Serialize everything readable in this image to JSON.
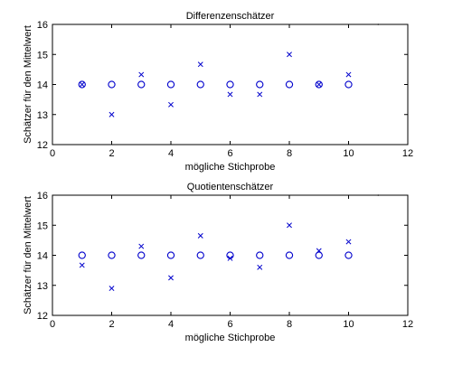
{
  "chart_data": [
    {
      "type": "scatter",
      "title": "Differenzenschätzer",
      "xlabel": "mögliche Stichprobe",
      "ylabel": "Schätzer für den Mittelwert",
      "xlim": [
        0,
        12
      ],
      "ylim": [
        12,
        16
      ],
      "xticks": [
        0,
        2,
        4,
        6,
        8,
        10,
        12
      ],
      "yticks": [
        12,
        13,
        14,
        15,
        16
      ],
      "grid": false,
      "series": [
        {
          "marker": "circle",
          "color": "#0000cc",
          "x": [
            1,
            2,
            3,
            4,
            5,
            6,
            7,
            8,
            9,
            10
          ],
          "y": [
            14,
            14,
            14,
            14,
            14,
            14,
            14,
            14,
            14,
            14
          ]
        },
        {
          "marker": "x",
          "color": "#0000cc",
          "x": [
            1,
            2,
            3,
            4,
            5,
            6,
            7,
            8,
            9,
            10
          ],
          "y": [
            14.0,
            13.0,
            14.33,
            13.33,
            14.67,
            13.67,
            13.67,
            15.0,
            14.0,
            14.33
          ]
        },
        {
          "marker": "dot",
          "color": "#000000",
          "x": [
            11
          ],
          "y": [
            16
          ]
        }
      ]
    },
    {
      "type": "scatter",
      "title": "Quotientenschätzer",
      "xlabel": "mögliche Stichprobe",
      "ylabel": "Schätzer für den Mittelwert",
      "xlim": [
        0,
        12
      ],
      "ylim": [
        12,
        16
      ],
      "xticks": [
        0,
        2,
        4,
        6,
        8,
        10,
        12
      ],
      "yticks": [
        12,
        13,
        14,
        15,
        16
      ],
      "grid": false,
      "series": [
        {
          "marker": "circle",
          "color": "#0000cc",
          "x": [
            1,
            2,
            3,
            4,
            5,
            6,
            7,
            8,
            9,
            10
          ],
          "y": [
            14,
            14,
            14,
            14,
            14,
            14,
            14,
            14,
            14,
            14
          ]
        },
        {
          "marker": "x",
          "color": "#0000cc",
          "x": [
            1,
            2,
            3,
            4,
            5,
            6,
            7,
            8,
            9,
            10
          ],
          "y": [
            13.67,
            12.9,
            14.3,
            13.25,
            14.65,
            13.9,
            13.6,
            15.0,
            14.15,
            14.45
          ]
        },
        {
          "marker": "dot",
          "color": "#000000",
          "x": [
            11
          ],
          "y": [
            16
          ]
        }
      ]
    }
  ]
}
